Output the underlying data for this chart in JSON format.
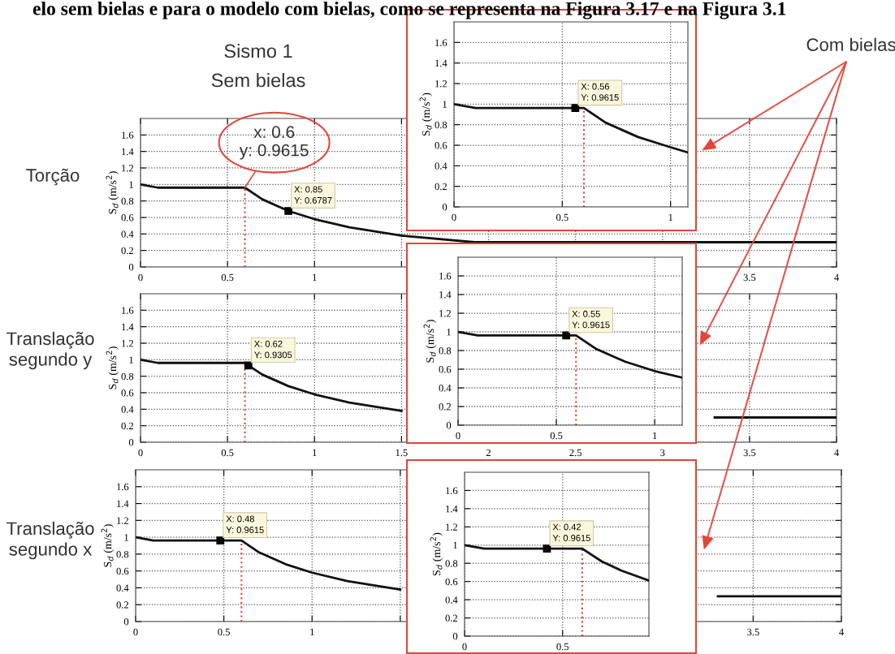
{
  "chart_data": [
    {
      "type": "line",
      "title": "Sismo 1",
      "subtitle": "Sem bielas",
      "ylabel": "S$_{d}$ (m/s$^{2}$)",
      "xlim": [
        0,
        4
      ],
      "ylim": [
        0,
        1.8
      ],
      "xticks": [
        0,
        0.5,
        1,
        {
          "value": 1.5,
          "label": null
        },
        {
          "value": 2,
          "label": null
        },
        {
          "value": 2.5,
          "label": null
        },
        {
          "value": 3,
          "label": null
        },
        3.5,
        4
      ],
      "yticks": [
        0,
        0.2,
        0.4,
        0.6,
        0.8,
        1,
        1.2,
        1.4,
        1.6
      ],
      "grid": true,
      "marker": "none",
      "line_style": "solid",
      "series": [
        {
          "color": "#111111",
          "x": [
            0,
            0.1,
            0.6,
            0.7,
            0.85,
            1,
            1.2,
            1.5,
            1.92,
            4
          ],
          "values": [
            1,
            0.9615,
            0.9615,
            0.82,
            0.6787,
            0.58,
            0.48,
            0.38,
            0.3,
            0.3
          ]
        },
        {
          "type": "scatter",
          "marker": "square",
          "color": "#000000",
          "x": [
            0.85
          ],
          "values": [
            0.6787
          ]
        }
      ],
      "ref_lines": [
        {
          "axis": "x",
          "value": 0.6,
          "color": "#e0463a",
          "line_style": "dotted"
        }
      ],
      "annotations": [
        "elo sem bielas e para o modelo com bielas, como se representa na Figura 3.17 e na Figura 3.1",
        "Torção",
        {
          "text": "X: 0.85\nY: 0.6787",
          "x": 0.85,
          "y": 0.6787
        },
        {
          "text": "x: 0.6\ny: 0.9615",
          "x": 0.6,
          "y": 0.9615
        }
      ]
    },
    {
      "type": "line",
      "ylabel": "S$_{d}$ (m/s$^{2}$)",
      "xlim": [
        0,
        1.08
      ],
      "ylim": [
        0,
        1.8
      ],
      "xticks": [
        0,
        0.5,
        1
      ],
      "yticks": [
        0,
        0.2,
        0.4,
        0.6,
        0.8,
        1,
        1.2,
        1.4,
        1.6
      ],
      "grid": true,
      "marker": "none",
      "line_style": "solid",
      "series": [
        {
          "color": "#111111",
          "x": [
            0,
            0.1,
            0.6,
            0.7,
            0.85,
            1,
            1.08
          ],
          "values": [
            1,
            0.9615,
            0.9615,
            0.82,
            0.68,
            0.58,
            0.53
          ]
        },
        {
          "type": "scatter",
          "marker": "square",
          "color": "#000000",
          "x": [
            0.56
          ],
          "values": [
            0.9615
          ]
        }
      ],
      "ref_lines": [
        {
          "axis": "x",
          "value": 0.6,
          "color": "#e0463a",
          "line_style": "dotted"
        }
      ],
      "annotations": [
        "Com bielas",
        {
          "text": "X: 0.56\nY: 0.9615",
          "x": 0.56,
          "y": 0.9615
        }
      ]
    },
    {
      "type": "line",
      "ylabel": "S$_{d}$ (m/s$^{2}$)",
      "xlim": [
        0,
        4
      ],
      "ylim": [
        0,
        1.8
      ],
      "xticks": [
        0,
        0.5,
        1,
        1.5,
        2,
        2.5,
        3,
        3.5,
        4
      ],
      "yticks": [
        0,
        0.2,
        0.4,
        0.6,
        0.8,
        1,
        1.2,
        1.4,
        1.6
      ],
      "grid": true,
      "marker": "none",
      "line_style": "solid",
      "series": [
        {
          "color": "#111111",
          "x": [
            0,
            0.1,
            0.6,
            0.62,
            0.7,
            0.85,
            1,
            1.2,
            1.5,
            1.92,
            3.3,
            4
          ],
          "values": [
            1,
            0.9615,
            0.9615,
            0.9305,
            0.82,
            0.68,
            0.58,
            0.48,
            0.38,
            null,
            0.3,
            0.3
          ]
        },
        {
          "type": "scatter",
          "marker": "square",
          "color": "#000000",
          "x": [
            0.62
          ],
          "values": [
            0.9305
          ]
        }
      ],
      "ref_lines": [
        {
          "axis": "x",
          "value": 0.6,
          "color": "#e0463a",
          "line_style": "dotted"
        }
      ],
      "annotations": [
        "Translação\nsegundo y",
        {
          "text": "X: 0.62\nY: 0.9305",
          "x": 0.62,
          "y": 0.9305
        }
      ]
    },
    {
      "type": "line",
      "ylabel": "S$_{d}$ (m/s$^{2}$)",
      "xlim": [
        0,
        1.14
      ],
      "ylim": [
        0,
        1.8
      ],
      "xticks": [
        0,
        0.5,
        1
      ],
      "yticks": [
        0,
        0.2,
        0.4,
        0.6,
        0.8,
        1,
        1.2,
        1.4,
        1.6
      ],
      "grid": true,
      "marker": "none",
      "line_style": "solid",
      "series": [
        {
          "color": "#111111",
          "x": [
            0,
            0.1,
            0.6,
            0.7,
            0.85,
            1,
            1.14
          ],
          "values": [
            1,
            0.9615,
            0.9615,
            0.82,
            0.68,
            0.58,
            0.51
          ]
        },
        {
          "type": "scatter",
          "marker": "square",
          "color": "#000000",
          "x": [
            0.55
          ],
          "values": [
            0.9615
          ]
        }
      ],
      "ref_lines": [
        {
          "axis": "x",
          "value": 0.6,
          "color": "#e0463a",
          "line_style": "dotted"
        }
      ],
      "annotations": [
        {
          "text": "X: 0.55\nY: 0.9615",
          "x": 0.55,
          "y": 0.9615
        }
      ]
    },
    {
      "type": "line",
      "ylabel": "S$_{d}$ (m/s$^{2}$)",
      "xlim": [
        0,
        4
      ],
      "ylim": [
        0,
        1.8
      ],
      "xticks": [
        0,
        0.5,
        1,
        {
          "value": 1.5,
          "label": null
        },
        {
          "value": 2,
          "label": null
        },
        {
          "value": 2.5,
          "label": null
        },
        {
          "value": 3,
          "label": null
        },
        3.5,
        4
      ],
      "yticks": [
        0,
        0.2,
        0.4,
        0.6,
        0.8,
        1,
        1.2,
        1.4,
        1.6
      ],
      "grid": true,
      "marker": "none",
      "line_style": "solid",
      "series": [
        {
          "color": "#111111",
          "x": [
            0,
            0.1,
            0.6,
            0.7,
            0.85,
            1,
            1.2,
            1.5,
            1.92,
            3.3,
            4
          ],
          "values": [
            1,
            0.9615,
            0.9615,
            0.82,
            0.68,
            0.58,
            0.48,
            0.38,
            null,
            0.3,
            0.3
          ]
        },
        {
          "type": "scatter",
          "marker": "square",
          "color": "#000000",
          "x": [
            0.48
          ],
          "values": [
            0.9615
          ]
        }
      ],
      "ref_lines": [
        {
          "axis": "x",
          "value": 0.6,
          "color": "#e0463a",
          "line_style": "dotted"
        }
      ],
      "annotations": [
        "Translação\nsegundo x",
        {
          "text": "X: 0.48\nY: 0.9615",
          "x": 0.48,
          "y": 0.9615
        }
      ]
    },
    {
      "type": "line",
      "ylabel": "S$_{d}$ (m/s$^{2}$)",
      "xlim": [
        0,
        0.94
      ],
      "ylim": [
        0,
        1.8
      ],
      "xticks": [
        0,
        0.5
      ],
      "yticks": [
        0,
        0.2,
        0.4,
        0.6,
        0.8,
        1,
        1.2,
        1.4,
        1.6
      ],
      "grid": true,
      "marker": "none",
      "line_style": "solid",
      "series": [
        {
          "color": "#111111",
          "x": [
            0,
            0.1,
            0.6,
            0.7,
            0.8,
            0.94
          ],
          "values": [
            1,
            0.9615,
            0.9615,
            0.82,
            0.72,
            0.61
          ]
        },
        {
          "type": "scatter",
          "marker": "square",
          "color": "#000000",
          "x": [
            0.42
          ],
          "values": [
            0.9615
          ]
        }
      ],
      "ref_lines": [
        {
          "axis": "x",
          "value": 0.6,
          "color": "#e0463a",
          "line_style": "dotted"
        }
      ],
      "annotations": [
        {
          "text": "X: 0.42\nY: 0.9615",
          "x": 0.42,
          "y": 0.9615
        }
      ]
    }
  ]
}
